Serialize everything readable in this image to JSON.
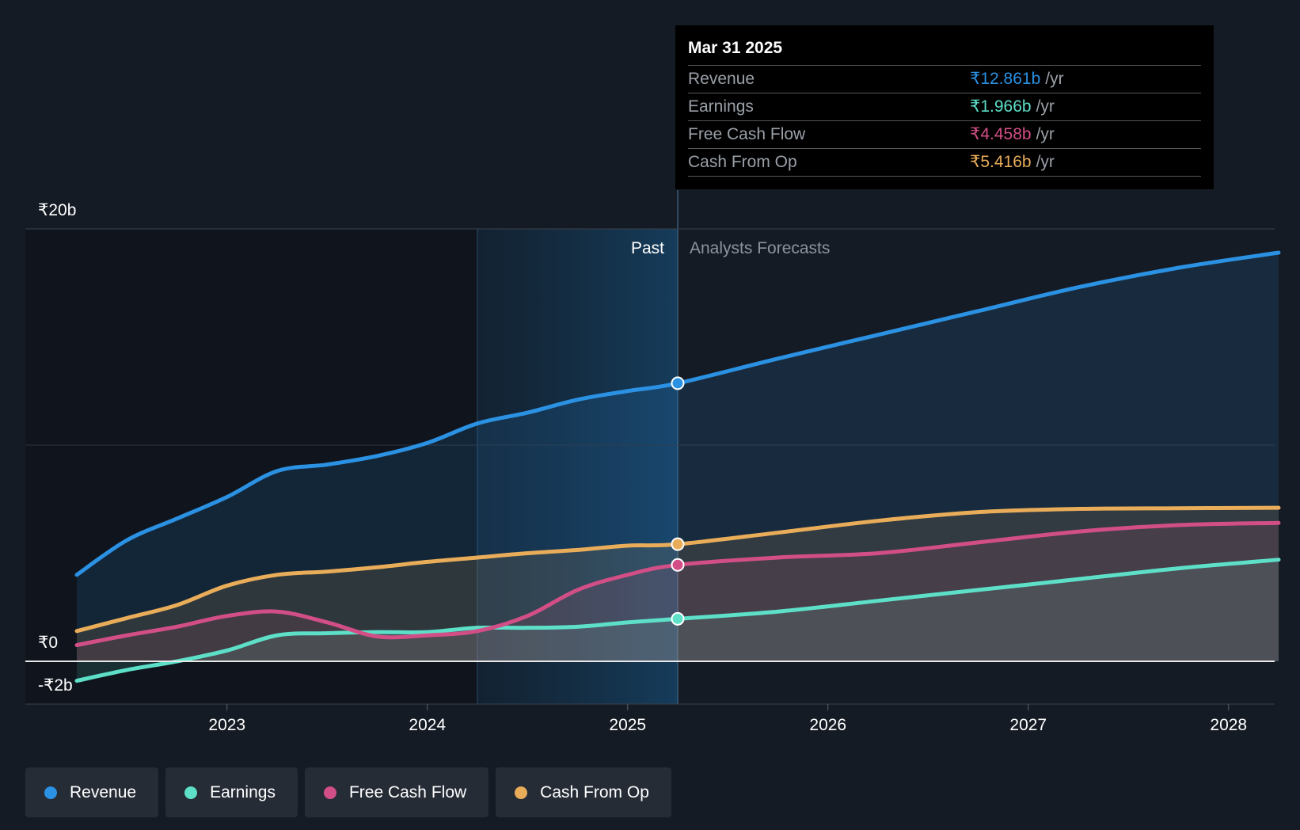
{
  "chart_data": {
    "type": "area",
    "y_axis": {
      "ylim": [
        -2,
        20
      ],
      "tick_labels": [
        {
          "value": 20,
          "label": "₹20b"
        },
        {
          "value": 0,
          "label": "₹0"
        },
        {
          "value": -2,
          "label": "-₹2b"
        }
      ]
    },
    "x_axis": {
      "xlim": [
        2022.25,
        2028.25
      ],
      "tick_labels": [
        "2023",
        "2024",
        "2025",
        "2026",
        "2027",
        "2028"
      ],
      "tick_values": [
        2023,
        2024,
        2025,
        2026,
        2027,
        2028
      ]
    },
    "grid": true,
    "legend_position": "bottom-left",
    "zones": {
      "past_label": "Past",
      "forecast_label": "Analysts Forecasts",
      "divider": 2025.25,
      "highlight_start": 2024.25
    },
    "series": [
      {
        "name": "Revenue",
        "color": "#2b91e3",
        "x": [
          2022.25,
          2022.5,
          2022.75,
          2023.0,
          2023.25,
          2023.5,
          2023.75,
          2024.0,
          2024.25,
          2024.5,
          2024.75,
          2025.0,
          2025.25,
          2025.75,
          2026.25,
          2026.75,
          2027.25,
          2027.75,
          2028.25
        ],
        "y": [
          4.0,
          5.6,
          6.6,
          7.6,
          8.8,
          9.1,
          9.5,
          10.1,
          11.0,
          11.5,
          12.1,
          12.5,
          12.86,
          14.0,
          15.1,
          16.2,
          17.3,
          18.2,
          18.9
        ]
      },
      {
        "name": "Earnings",
        "color": "#5ddfc8",
        "x": [
          2022.25,
          2022.5,
          2022.75,
          2023.0,
          2023.25,
          2023.5,
          2023.75,
          2024.0,
          2024.25,
          2024.5,
          2024.75,
          2025.0,
          2025.25,
          2025.75,
          2026.25,
          2026.75,
          2027.25,
          2027.75,
          2028.25
        ],
        "y": [
          -0.9,
          -0.4,
          0.0,
          0.5,
          1.2,
          1.3,
          1.35,
          1.35,
          1.55,
          1.55,
          1.6,
          1.8,
          1.966,
          2.3,
          2.8,
          3.3,
          3.8,
          4.3,
          4.7
        ]
      },
      {
        "name": "Free Cash Flow",
        "color": "#d24e86",
        "x": [
          2022.25,
          2022.5,
          2022.75,
          2023.0,
          2023.25,
          2023.5,
          2023.75,
          2024.0,
          2024.25,
          2024.5,
          2024.75,
          2025.0,
          2025.25,
          2025.75,
          2026.25,
          2026.75,
          2027.25,
          2027.75,
          2028.25
        ],
        "y": [
          0.75,
          1.2,
          1.6,
          2.1,
          2.3,
          1.8,
          1.15,
          1.2,
          1.4,
          2.1,
          3.3,
          4.0,
          4.458,
          4.8,
          5.0,
          5.5,
          6.0,
          6.3,
          6.4
        ]
      },
      {
        "name": "Cash From Op",
        "color": "#e9ad5a",
        "x": [
          2022.25,
          2022.5,
          2022.75,
          2023.0,
          2023.25,
          2023.5,
          2023.75,
          2024.0,
          2024.25,
          2024.5,
          2024.75,
          2025.0,
          2025.25,
          2025.75,
          2026.25,
          2026.75,
          2027.25,
          2027.75,
          2028.25
        ],
        "y": [
          1.4,
          2.0,
          2.6,
          3.5,
          4.0,
          4.15,
          4.35,
          4.6,
          4.8,
          5.0,
          5.15,
          5.35,
          5.416,
          5.95,
          6.5,
          6.9,
          7.05,
          7.08,
          7.1
        ]
      }
    ],
    "highlight_x": 2025.25
  },
  "tooltip": {
    "date": "Mar 31 2025",
    "rows": [
      {
        "name": "Revenue",
        "value": "₹12.861b",
        "unit": "/yr",
        "color": "#2b91e3"
      },
      {
        "name": "Earnings",
        "value": "₹1.966b",
        "unit": "/yr",
        "color": "#5ddfc8"
      },
      {
        "name": "Free Cash Flow",
        "value": "₹4.458b",
        "unit": "/yr",
        "color": "#d24e86"
      },
      {
        "name": "Cash From Op",
        "value": "₹5.416b",
        "unit": "/yr",
        "color": "#e9ad5a"
      }
    ]
  },
  "legend": [
    {
      "label": "Revenue",
      "color": "#2b91e3"
    },
    {
      "label": "Earnings",
      "color": "#5ddfc8"
    },
    {
      "label": "Free Cash Flow",
      "color": "#d24e86"
    },
    {
      "label": "Cash From Op",
      "color": "#e9ad5a"
    }
  ]
}
